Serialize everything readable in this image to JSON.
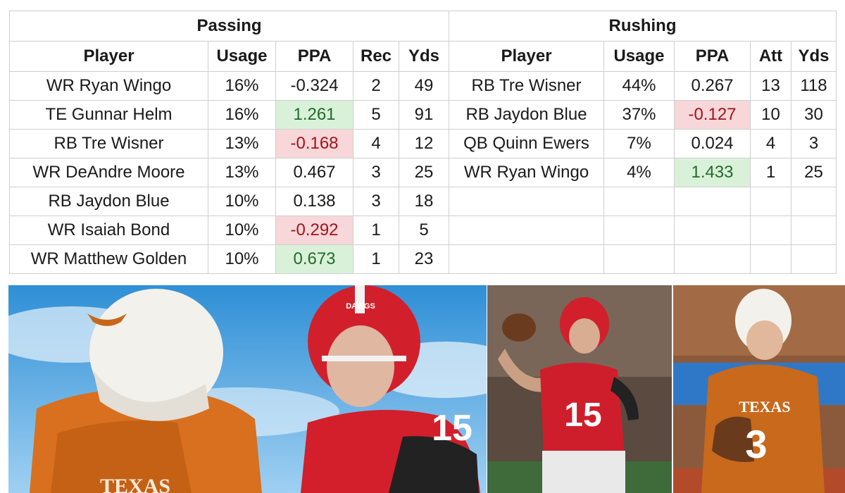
{
  "passing": {
    "title": "Passing",
    "columns": [
      "Player",
      "Usage",
      "PPA",
      "Rec",
      "Yds"
    ],
    "rows": [
      {
        "player": "WR Ryan Wingo",
        "usage": "16%",
        "ppa": "-0.324",
        "rec": "2",
        "yds": "49",
        "highlight": ""
      },
      {
        "player": "TE Gunnar Helm",
        "usage": "16%",
        "ppa": "1.261",
        "rec": "5",
        "yds": "91",
        "highlight": "good"
      },
      {
        "player": "RB Tre Wisner",
        "usage": "13%",
        "ppa": "-0.168",
        "rec": "4",
        "yds": "12",
        "highlight": "bad"
      },
      {
        "player": "WR DeAndre Moore",
        "usage": "13%",
        "ppa": "0.467",
        "rec": "3",
        "yds": "25",
        "highlight": ""
      },
      {
        "player": "RB Jaydon Blue",
        "usage": "10%",
        "ppa": "0.138",
        "rec": "3",
        "yds": "18",
        "highlight": ""
      },
      {
        "player": "WR Isaiah Bond",
        "usage": "10%",
        "ppa": "-0.292",
        "rec": "1",
        "yds": "5",
        "highlight": "bad"
      },
      {
        "player": "WR Matthew Golden",
        "usage": "10%",
        "ppa": "0.673",
        "rec": "1",
        "yds": "23",
        "highlight": "good"
      }
    ]
  },
  "rushing": {
    "title": "Rushing",
    "columns": [
      "Player",
      "Usage",
      "PPA",
      "Att",
      "Yds"
    ],
    "rows": [
      {
        "player": "RB Tre Wisner",
        "usage": "44%",
        "ppa": "0.267",
        "att": "13",
        "yds": "118",
        "highlight": ""
      },
      {
        "player": "RB Jaydon Blue",
        "usage": "37%",
        "ppa": "-0.127",
        "att": "10",
        "yds": "30",
        "highlight": "bad"
      },
      {
        "player": "QB Quinn Ewers",
        "usage": "7%",
        "ppa": "0.024",
        "att": "4",
        "yds": "3",
        "highlight": ""
      },
      {
        "player": "WR Ryan Wingo",
        "usage": "4%",
        "ppa": "1.433",
        "att": "1",
        "yds": "25",
        "highlight": "good"
      },
      {
        "player": "",
        "usage": "",
        "ppa": "",
        "att": "",
        "yds": "",
        "highlight": ""
      },
      {
        "player": "",
        "usage": "",
        "ppa": "",
        "att": "",
        "yds": "",
        "highlight": ""
      },
      {
        "player": "",
        "usage": "",
        "ppa": "",
        "att": "",
        "yds": "",
        "highlight": ""
      }
    ]
  },
  "photos": {
    "main": {
      "icon": "texas-vs-georgia-players-photo",
      "jersey_number": "15",
      "wordmark": "TEXAS",
      "helmet_text": "DAWGS"
    },
    "georgia": {
      "icon": "georgia-quarterback-photo",
      "jersey_number": "15"
    },
    "texas": {
      "icon": "texas-quarterback-photo",
      "jersey_number": "3",
      "wordmark": "TEXAS"
    }
  },
  "colors": {
    "negative_fill": "#f7d7d9",
    "negative_text": "#a3121c",
    "positive_fill": "#daf1d9",
    "positive_text": "#216b2a",
    "texas_orange": "#bf5700",
    "georgia_red": "#ba0c2f"
  }
}
